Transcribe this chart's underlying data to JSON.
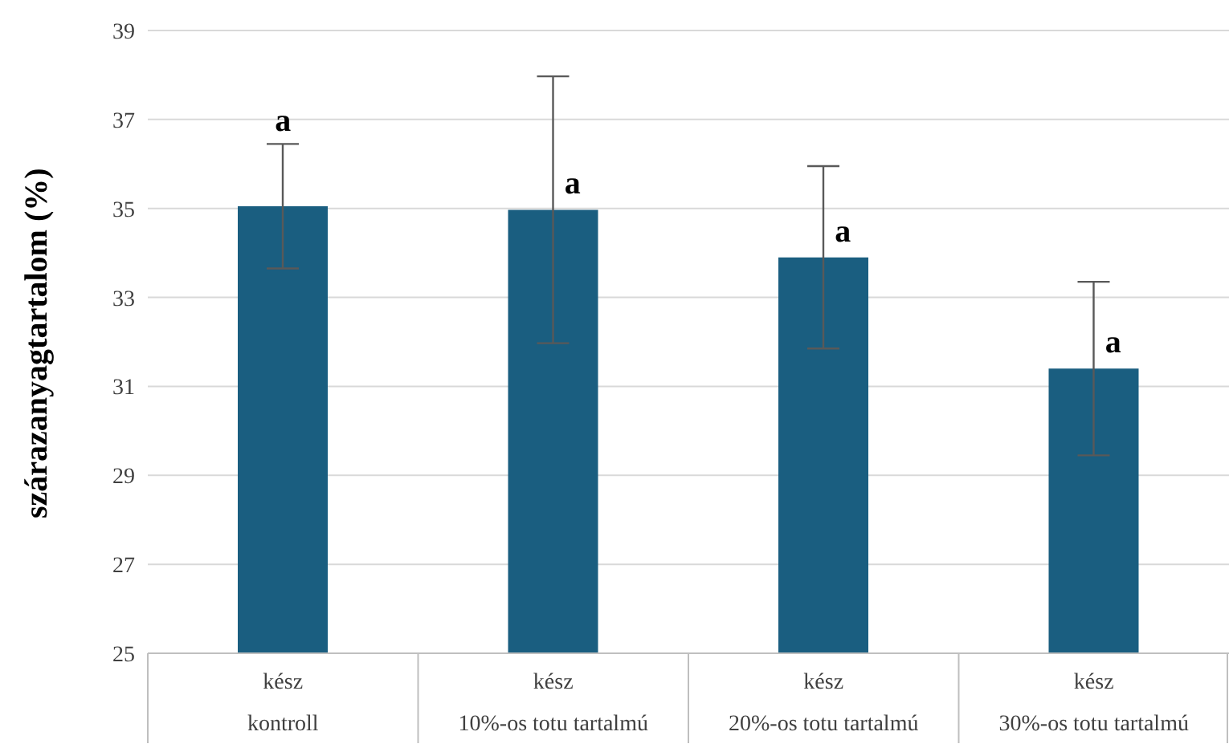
{
  "chart_data": {
    "type": "bar",
    "ylabel": "szárazanyagtartalom  (%)",
    "categories": [
      "kész\nkontroll",
      "kész\n10%-os totu tartalmú",
      "kész\n20%-os totu tartalmú",
      "kész\n30%-os totu tartalmú"
    ],
    "values": [
      35.05,
      34.97,
      33.9,
      31.4
    ],
    "color": "#1a5e80",
    "errors": [
      1.4,
      3.0,
      2.05,
      1.95
    ],
    "ylim": [
      25,
      39
    ],
    "yticks": [
      25,
      27,
      29,
      31,
      33,
      35,
      37,
      39
    ],
    "grid": "y",
    "annotations": [
      "a",
      "a",
      "a",
      "a"
    ]
  }
}
